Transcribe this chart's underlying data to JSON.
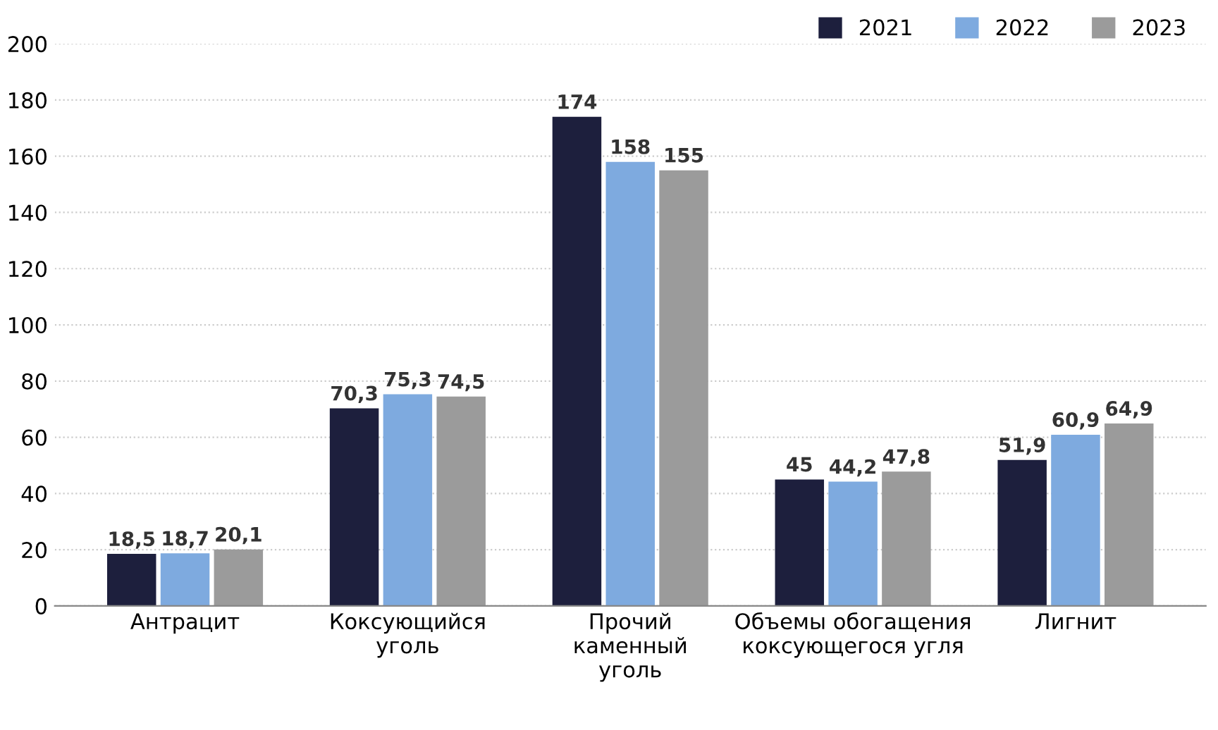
{
  "chart_data": {
    "type": "bar",
    "categories": [
      "Антрацит",
      "Коксующийся\nуголь",
      "Прочий\nкаменный\nуголь",
      "Объемы обогащения\nкоксующегося угля",
      "Лигнит"
    ],
    "series": [
      {
        "name": "2021",
        "color": "#1d1f3d",
        "values": [
          18.5,
          70.3,
          174,
          45,
          51.9
        ],
        "value_labels": [
          "18,5",
          "70,3",
          "174",
          "45",
          "51,9"
        ]
      },
      {
        "name": "2022",
        "color": "#7eaadf",
        "values": [
          18.7,
          75.3,
          158,
          44.2,
          60.9
        ],
        "value_labels": [
          "18,7",
          "75,3",
          "158",
          "44,2",
          "60,9"
        ]
      },
      {
        "name": "2023",
        "color": "#9b9b9b",
        "values": [
          20.1,
          74.5,
          155,
          47.8,
          64.9
        ],
        "value_labels": [
          "20,1",
          "74,5",
          "155",
          "47,8",
          "64,9"
        ]
      }
    ],
    "ylim": [
      0,
      200
    ],
    "yticks": [
      0,
      20,
      40,
      60,
      80,
      100,
      120,
      140,
      160,
      180,
      200
    ],
    "grid": "y",
    "legend": "top right"
  }
}
